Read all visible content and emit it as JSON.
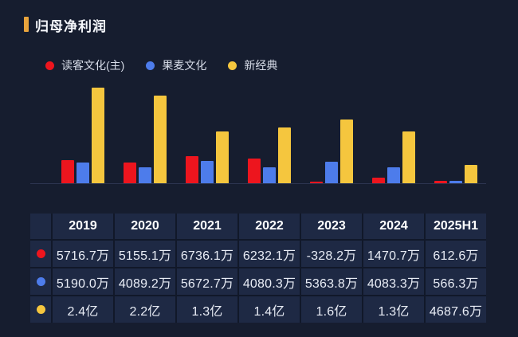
{
  "header": {
    "title": "归母净利润"
  },
  "colors": {
    "background": "#161d2f",
    "title_marker": "#e9a43c",
    "table_cell": "#1e2944",
    "table_gap": "#111829",
    "axis": "#2c3550",
    "red": "#ed151e",
    "blue": "#4d7ceb",
    "yellow": "#f5c63e"
  },
  "legend": [
    {
      "label": "读客文化(主)",
      "color": "#ed151e"
    },
    {
      "label": "果麦文化",
      "color": "#4d7ceb"
    },
    {
      "label": "新经典",
      "color": "#f5c63e"
    }
  ],
  "chart_data": {
    "type": "bar",
    "title": "归母净利润",
    "categories": [
      "2019",
      "2020",
      "2021",
      "2022",
      "2023",
      "2024",
      "2025H1"
    ],
    "series": [
      {
        "name": "读客文化(主)",
        "color": "#ed151e",
        "values_wan": [
          5716.7,
          5155.1,
          6736.1,
          6232.1,
          -328.2,
          1470.7,
          612.6
        ]
      },
      {
        "name": "果麦文化",
        "color": "#4d7ceb",
        "values_wan": [
          5190.0,
          4089.2,
          5672.7,
          4080.3,
          5363.8,
          4083.3,
          566.3
        ]
      },
      {
        "name": "新经典",
        "color": "#f5c63e",
        "values_wan": [
          24000,
          22000,
          13000,
          14000,
          16000,
          13000,
          4687.6
        ]
      }
    ],
    "unit": "万",
    "ylim": [
      0,
      24000
    ],
    "grid": false,
    "legend_position": "top-left",
    "xlabel": "",
    "ylabel": ""
  },
  "table": {
    "columns": [
      "2019",
      "2020",
      "2021",
      "2022",
      "2023",
      "2024",
      "2025H1"
    ],
    "rows": [
      {
        "series": "读客文化(主)",
        "color": "#ed151e",
        "values": [
          "5716.7万",
          "5155.1万",
          "6736.1万",
          "6232.1万",
          "-328.2万",
          "1470.7万",
          "612.6万"
        ]
      },
      {
        "series": "果麦文化",
        "color": "#4d7ceb",
        "values": [
          "5190.0万",
          "4089.2万",
          "5672.7万",
          "4080.3万",
          "5363.8万",
          "4083.3万",
          "566.3万"
        ]
      },
      {
        "series": "新经典",
        "color": "#f5c63e",
        "values": [
          "2.4亿",
          "2.2亿",
          "1.3亿",
          "1.4亿",
          "1.6亿",
          "1.3亿",
          "4687.6万"
        ]
      }
    ]
  }
}
